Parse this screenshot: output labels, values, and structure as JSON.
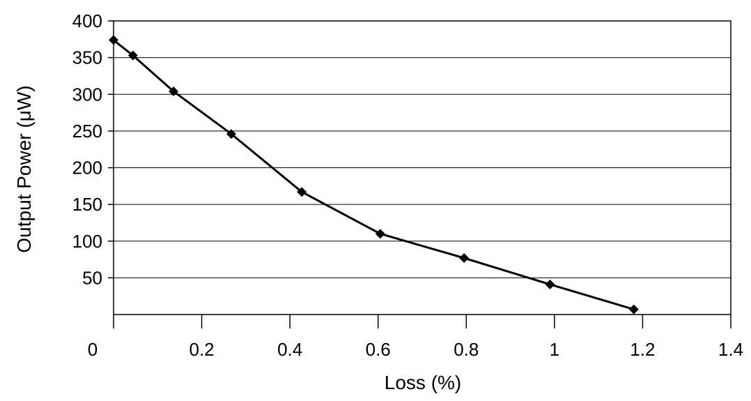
{
  "chart_data": {
    "type": "line",
    "title": "",
    "xlabel": "Loss (%)",
    "ylabel": "Output Power (μW)",
    "xlim": [
      0,
      1.4
    ],
    "ylim": [
      0,
      400
    ],
    "x_ticks": [
      0,
      0.2,
      0.4,
      0.6,
      0.8,
      1,
      1.2,
      1.4
    ],
    "x_tick_labels": [
      "0",
      "0.2",
      "0.4",
      "0.6",
      "0.8",
      "1",
      "1.2",
      "1.4"
    ],
    "y_ticks": [
      50,
      100,
      150,
      200,
      250,
      300,
      350,
      400
    ],
    "y_tick_labels": [
      "50",
      "100",
      "150",
      "200",
      "250",
      "300",
      "350",
      "400"
    ],
    "grid": "horizontal",
    "legend": "none",
    "line_color": "#000000",
    "marker": "diamond",
    "series": [
      {
        "x": [
          0.0,
          0.044,
          0.136,
          0.267,
          0.427,
          0.605,
          0.795,
          0.99,
          1.18
        ],
        "y": [
          374,
          353,
          304,
          246,
          167,
          110,
          77,
          41,
          7
        ]
      }
    ]
  }
}
